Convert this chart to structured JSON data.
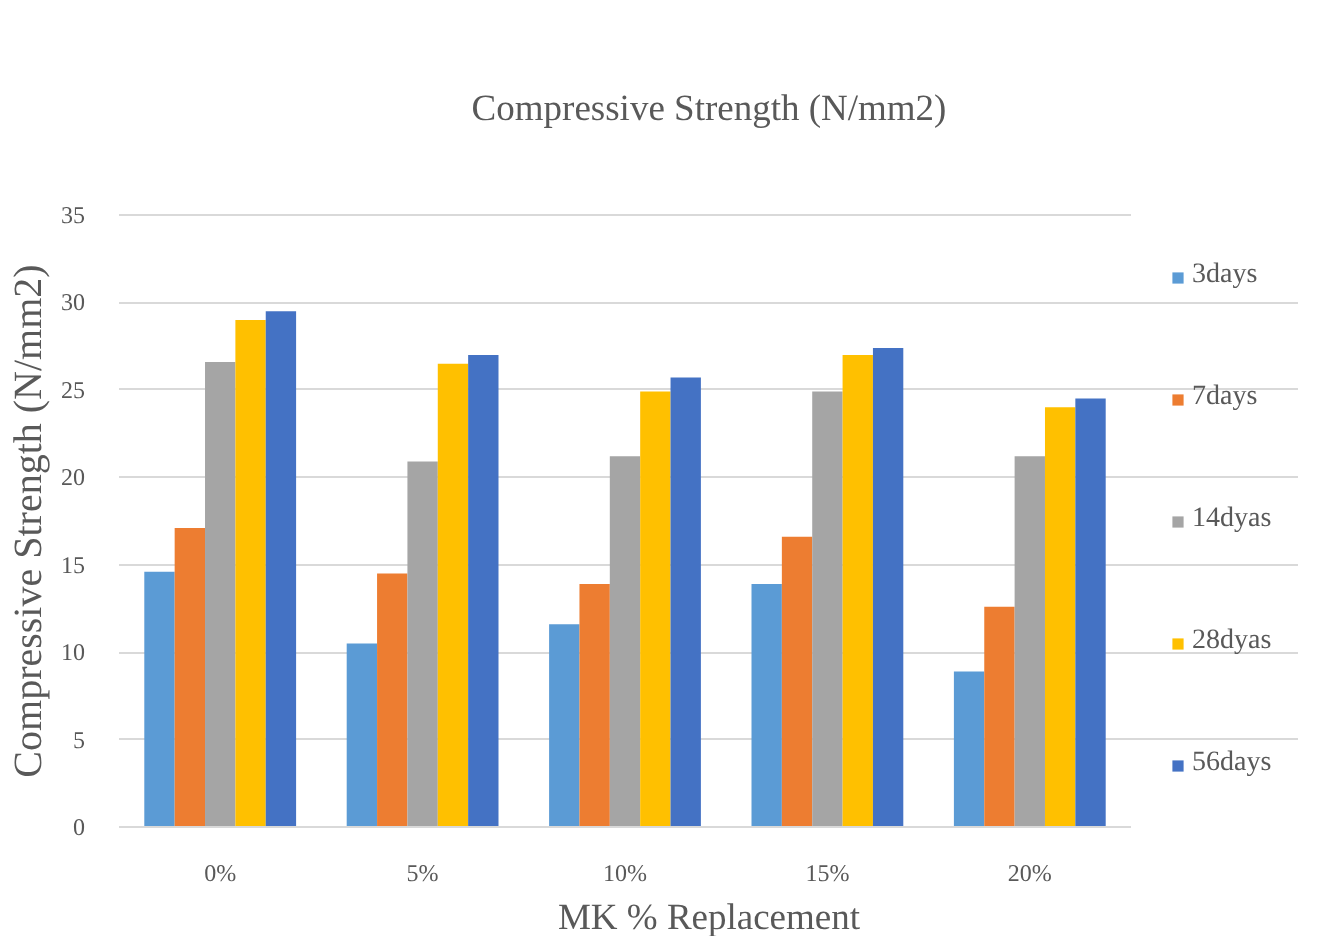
{
  "chart_data": {
    "type": "bar",
    "title": "Compressive Strength (N/mm2)",
    "xlabel": "MK % Replacement",
    "ylabel": "Compressive Strength (N/mm2)",
    "categories": [
      "0%",
      "5%",
      "10%",
      "15%",
      "20%"
    ],
    "series": [
      {
        "name": "3days",
        "color": "#5b9bd5",
        "values": [
          14.6,
          10.5,
          11.6,
          13.9,
          8.9
        ]
      },
      {
        "name": "7days",
        "color": "#ed7d31",
        "values": [
          17.1,
          14.5,
          13.9,
          16.6,
          12.6
        ]
      },
      {
        "name": "14dyas",
        "color": "#a5a5a5",
        "values": [
          26.6,
          20.9,
          21.2,
          24.9,
          21.2
        ]
      },
      {
        "name": "28dyas",
        "color": "#ffc000",
        "values": [
          29.0,
          26.5,
          24.9,
          27.0,
          24.0
        ]
      },
      {
        "name": "56days",
        "color": "#4472c4",
        "values": [
          29.5,
          27.0,
          25.7,
          27.4,
          24.5
        ]
      }
    ],
    "ylim": [
      0,
      35
    ],
    "yticks": [
      0,
      5,
      10,
      15,
      20,
      25,
      30,
      35
    ],
    "grid": "y",
    "legend": "right"
  }
}
